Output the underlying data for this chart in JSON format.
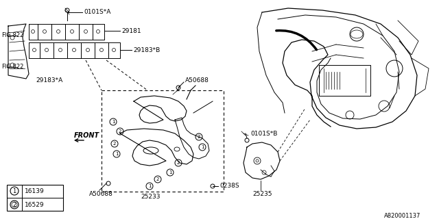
{
  "bg_color": "#ffffff",
  "line_color": "#000000",
  "text_color": "#000000",
  "fig_width": 6.4,
  "fig_height": 3.2,
  "dpi": 100,
  "part_number_ref": "A820001137",
  "labels": {
    "0101S_A": "0101S*A",
    "29181": "29181",
    "29183B": "29183*B",
    "29183A": "29183*A",
    "FIG822_top": "FIG.822",
    "FIG822_bot": "FIG.822",
    "A50688_top": "A50688",
    "A50688_bot": "A50688",
    "0238S": "0238S",
    "25233": "25233",
    "0101S_B": "0101S*B",
    "25235": "25235",
    "FRONT": "FRONT",
    "legend1_num": "16139",
    "legend2_num": "16529"
  }
}
